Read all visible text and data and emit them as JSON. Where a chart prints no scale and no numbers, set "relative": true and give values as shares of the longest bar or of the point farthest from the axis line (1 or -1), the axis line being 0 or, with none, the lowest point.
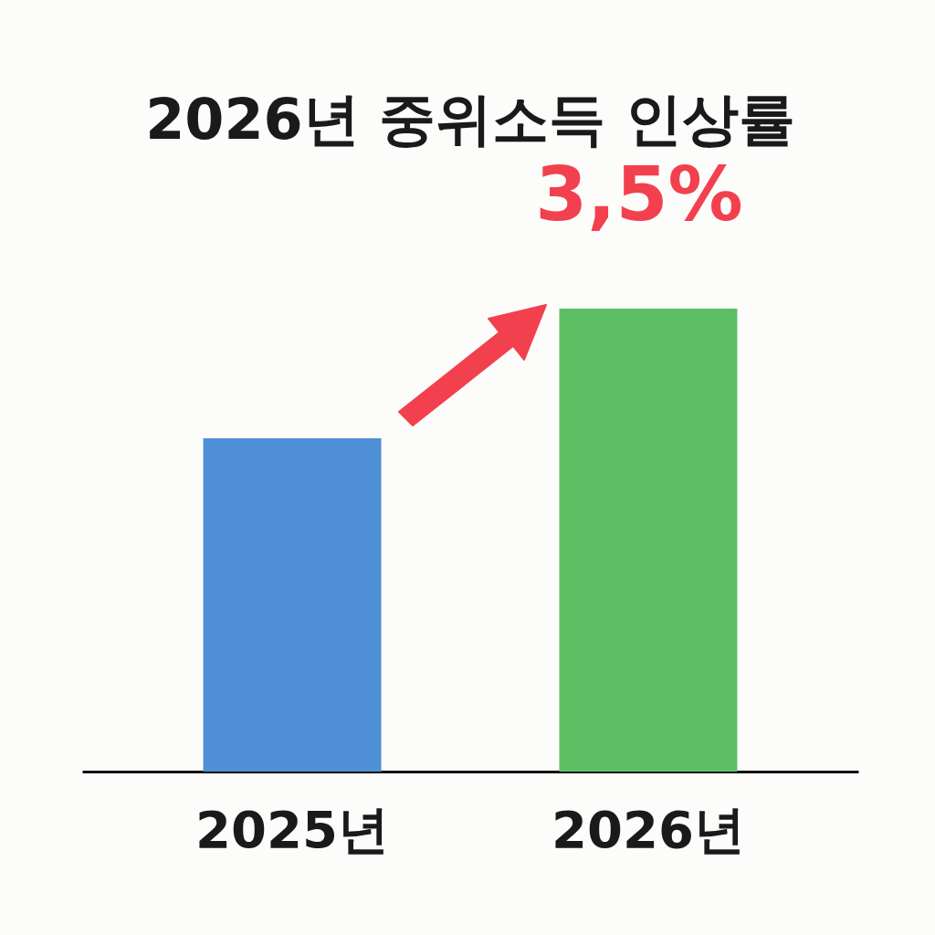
{
  "chart_data": {
    "type": "bar",
    "title": "2026년 중위소득 인상률",
    "relative": true,
    "categories": [
      "2025년",
      "2026년"
    ],
    "values": [
      0.72,
      1
    ],
    "colors": [
      "#4f8fd6",
      "#5cbf63"
    ],
    "annotations": [
      {
        "text": "3,5%",
        "x": "2026년",
        "y": 1
      }
    ]
  }
}
